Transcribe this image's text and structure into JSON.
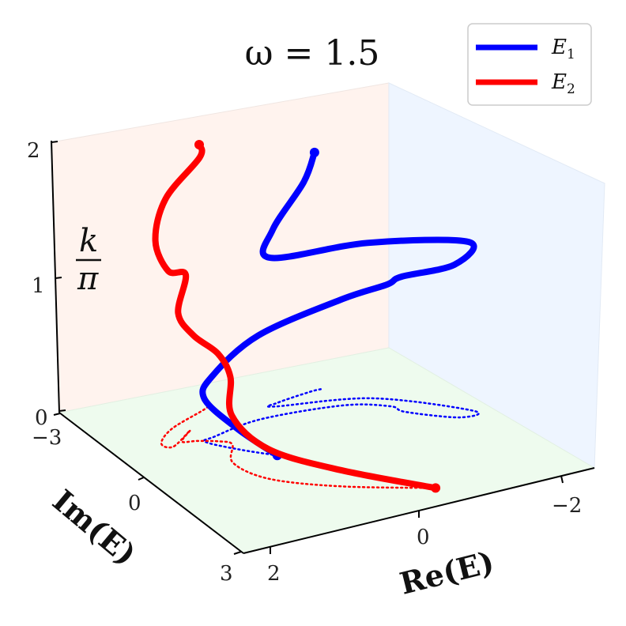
{
  "chart_data": {
    "type": "line",
    "title": "ω = 1.5",
    "xlabel": "Re(E)",
    "ylabel": "Im(E)",
    "zlabel": {
      "numerator": "k",
      "denominator": "π"
    },
    "xlim": [
      -3,
      3
    ],
    "ylim": [
      -3,
      3
    ],
    "zlim": [
      0,
      2
    ],
    "x_ticks": [
      "2",
      "0",
      "−2"
    ],
    "y_ticks": [
      "−3",
      "0",
      "3"
    ],
    "z_ticks": [
      "0",
      "1",
      "2"
    ],
    "grid": false,
    "legend_position": "top-right",
    "projection_on_floor": true,
    "series": [
      {
        "name": "E",
        "subscript": "1",
        "color": "#0000ff",
        "points": [
          {
            "re": 0.9,
            "im": 0.1,
            "k": 0.0
          },
          {
            "re": 1.3,
            "im": -0.4,
            "k": 0.15
          },
          {
            "re": 1.6,
            "im": -0.9,
            "k": 0.32
          },
          {
            "re": 1.4,
            "im": -1.0,
            "k": 0.45
          },
          {
            "re": 0.5,
            "im": -1.2,
            "k": 0.62
          },
          {
            "re": -0.8,
            "im": -1.0,
            "k": 0.78
          },
          {
            "re": -1.4,
            "im": -0.6,
            "k": 0.9
          },
          {
            "re": -1.5,
            "im": -0.3,
            "k": 1.0
          },
          {
            "re": -2.1,
            "im": 0.3,
            "k": 1.13
          },
          {
            "re": -2.4,
            "im": 0.2,
            "k": 1.25
          },
          {
            "re": -1.3,
            "im": -1.0,
            "k": 1.15
          },
          {
            "re": 0.1,
            "im": -1.5,
            "k": 1.1
          },
          {
            "re": 0.0,
            "im": -1.6,
            "k": 1.28
          },
          {
            "re": -0.6,
            "im": -1.7,
            "k": 1.55
          },
          {
            "re": -0.8,
            "im": -1.7,
            "k": 1.75
          }
        ]
      },
      {
        "name": "E",
        "subscript": "2",
        "color": "#ff0000",
        "points": [
          {
            "re": -0.6,
            "im": 2.4,
            "k": 0.0
          },
          {
            "re": 0.6,
            "im": 1.6,
            "k": 0.12
          },
          {
            "re": 1.4,
            "im": 0.8,
            "k": 0.22
          },
          {
            "re": 1.6,
            "im": 0.0,
            "k": 0.35
          },
          {
            "re": 1.3,
            "im": -0.6,
            "k": 0.5
          },
          {
            "re": 1.4,
            "im": -0.8,
            "k": 0.65
          },
          {
            "re": 1.7,
            "im": -1.0,
            "k": 0.78
          },
          {
            "re": 1.9,
            "im": -1.1,
            "k": 0.95
          },
          {
            "re": 1.6,
            "im": -1.4,
            "k": 1.15
          },
          {
            "re": 2.1,
            "im": -1.0,
            "k": 1.3
          },
          {
            "re": 2.2,
            "im": -1.2,
            "k": 1.5
          },
          {
            "re": 1.8,
            "im": -1.6,
            "k": 1.7
          },
          {
            "re": 1.0,
            "im": -2.0,
            "k": 1.85
          },
          {
            "re": 0.9,
            "im": -2.2,
            "k": 1.9
          }
        ]
      }
    ]
  }
}
